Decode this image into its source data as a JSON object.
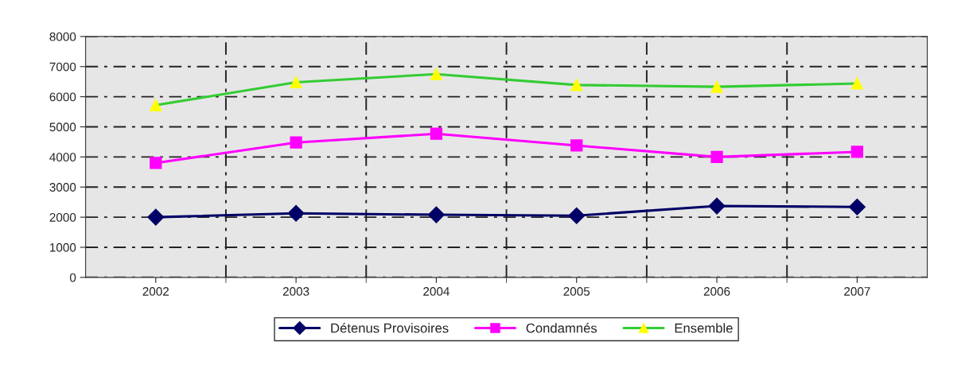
{
  "chart_data": {
    "type": "line",
    "categories": [
      "2002",
      "2003",
      "2004",
      "2005",
      "2006",
      "2007"
    ],
    "series": [
      {
        "name": "Détenus Provisoires",
        "color": "#000066",
        "marker": "diamond",
        "values": [
          2000,
          2130,
          2080,
          2050,
          2370,
          2340
        ]
      },
      {
        "name": "Condamnés",
        "color": "#ff00ff",
        "marker": "square",
        "values": [
          3800,
          4480,
          4770,
          4380,
          4000,
          4170
        ]
      },
      {
        "name": "Ensemble",
        "color": "#33cc33",
        "marker": "triangle",
        "values": [
          5720,
          6480,
          6750,
          6390,
          6330,
          6440
        ]
      }
    ],
    "ylim": [
      0,
      8000
    ],
    "yticks": [
      0,
      1000,
      2000,
      3000,
      4000,
      5000,
      6000,
      7000,
      8000
    ],
    "grid": true,
    "legend": "bottom",
    "line_style": "solid"
  }
}
